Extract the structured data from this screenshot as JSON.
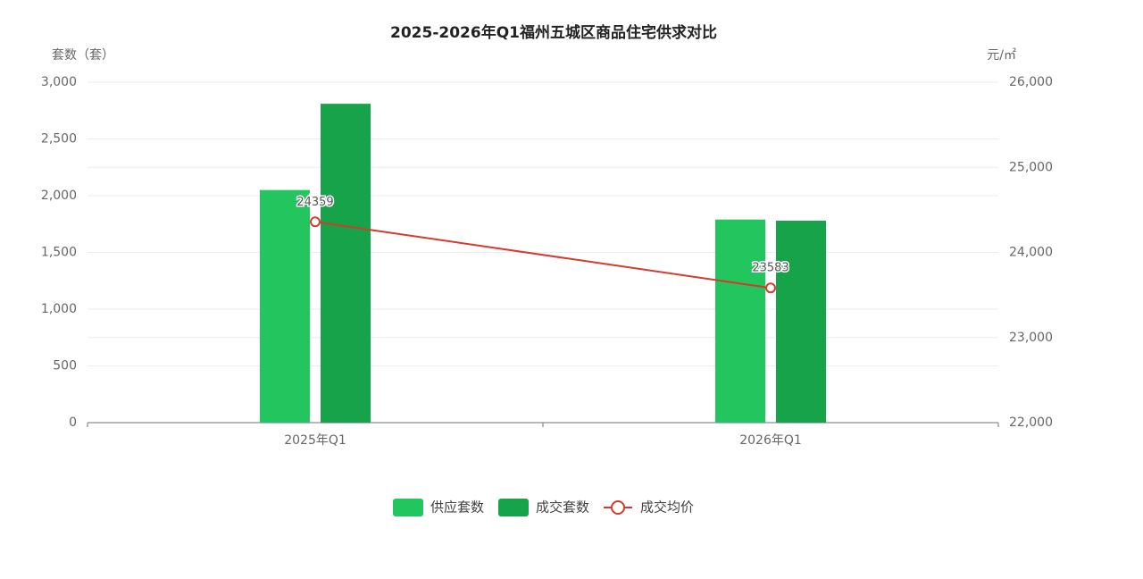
{
  "chart_data": {
    "type": "bar",
    "title": "2025-2026年Q1福州五城区商品住宅供求对比",
    "y_label": "套数（套）",
    "y2_label": "元/㎡",
    "categories": [
      "2025年Q1",
      "2026年Q1"
    ],
    "series": [
      {
        "name": "供应套数",
        "type": "bar",
        "color": "#22c55e",
        "values": [
          2050,
          1790
        ]
      },
      {
        "name": "成交套数",
        "type": "bar",
        "color": "#16a34a",
        "values": [
          2810,
          1780
        ]
      },
      {
        "name": "成交均价",
        "type": "line",
        "axis": "y2",
        "color": "#d63a2f",
        "values": [
          24359,
          23583
        ]
      }
    ],
    "ylim": [
      0,
      3000
    ],
    "yticks": [
      0,
      500,
      {
        "value": 1000,
        "label": "1,000"
      },
      {
        "value": 1500,
        "label": "1,500"
      },
      {
        "value": 2000,
        "label": "2,000"
      },
      {
        "value": 2500,
        "label": "2,500"
      },
      {
        "value": 3000,
        "label": "3,000"
      }
    ],
    "y2lim": [
      22000,
      26000
    ],
    "y2ticks": [
      {
        "value": 22000,
        "label": "22,000"
      },
      {
        "value": 23000,
        "label": "23,000"
      },
      {
        "value": 24000,
        "label": "24,000"
      },
      {
        "value": 25000,
        "label": "25,000"
      },
      {
        "value": 26000,
        "label": "26,000"
      }
    ],
    "grid": true,
    "legend": "bottom"
  }
}
